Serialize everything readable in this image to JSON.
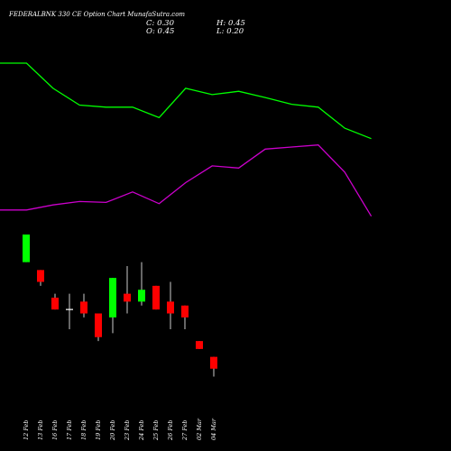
{
  "header": {
    "title": "FEDERALBNK 330  CE Option  Chart MunafaSutra.com",
    "close": "C: 0.30",
    "open": "O: 0.45",
    "high": "H: 0.45",
    "low": "L: 0.20"
  },
  "chart_data": {
    "type": "candlestick",
    "categories": [
      "12 Feb",
      "13 Feb",
      "16 Feb",
      "17 Feb",
      "18 Feb",
      "19 Feb",
      "20 Feb",
      "23 Feb",
      "24 Feb",
      "25 Feb",
      "26 Feb",
      "27 Feb",
      "02 Mar",
      "04 Mar"
    ],
    "candles": [
      {
        "open": 1.65,
        "close": 2.0,
        "high": 2.0,
        "low": 1.65
      },
      {
        "open": 1.55,
        "close": 1.4,
        "high": 1.55,
        "low": 1.35
      },
      {
        "open": 1.2,
        "close": 1.05,
        "high": 1.25,
        "low": 1.05
      },
      {
        "open": 1.05,
        "close": 1.05,
        "high": 1.25,
        "low": 0.8
      },
      {
        "open": 1.15,
        "close": 1.0,
        "high": 1.25,
        "low": 0.95
      },
      {
        "open": 1.0,
        "close": 0.7,
        "high": 1.0,
        "low": 0.65
      },
      {
        "open": 0.95,
        "close": 1.45,
        "high": 1.45,
        "low": 0.75
      },
      {
        "open": 1.25,
        "close": 1.15,
        "high": 1.6,
        "low": 1.0
      },
      {
        "open": 1.15,
        "close": 1.3,
        "high": 1.65,
        "low": 1.1
      },
      {
        "open": 1.35,
        "close": 1.05,
        "high": 1.35,
        "low": 1.05
      },
      {
        "open": 1.15,
        "close": 1.0,
        "high": 1.4,
        "low": 0.8
      },
      {
        "open": 1.1,
        "close": 0.95,
        "high": 1.1,
        "low": 0.8
      },
      {
        "open": 0.65,
        "close": 0.55,
        "high": 0.65,
        "low": 0.55
      },
      {
        "open": 0.45,
        "close": 0.3,
        "high": 0.45,
        "low": 0.2
      }
    ],
    "upper_line": [
      8.5,
      8.5,
      7.9,
      7.5,
      7.45,
      7.45,
      7.2,
      7.9,
      7.75,
      7.83,
      7.68,
      7.52,
      7.45,
      6.95,
      6.7
    ],
    "lower_line": [
      5.0,
      5.0,
      5.12,
      5.2,
      5.18,
      5.43,
      5.15,
      5.65,
      6.05,
      6.0,
      6.45,
      6.5,
      6.55,
      5.9,
      4.85
    ],
    "colors": {
      "up": "#00ff00",
      "down": "#ff0000",
      "wick": "#ffffff",
      "upper_line": "#00ff00",
      "lower_line": "#cc00cc",
      "background": "#000000"
    }
  }
}
